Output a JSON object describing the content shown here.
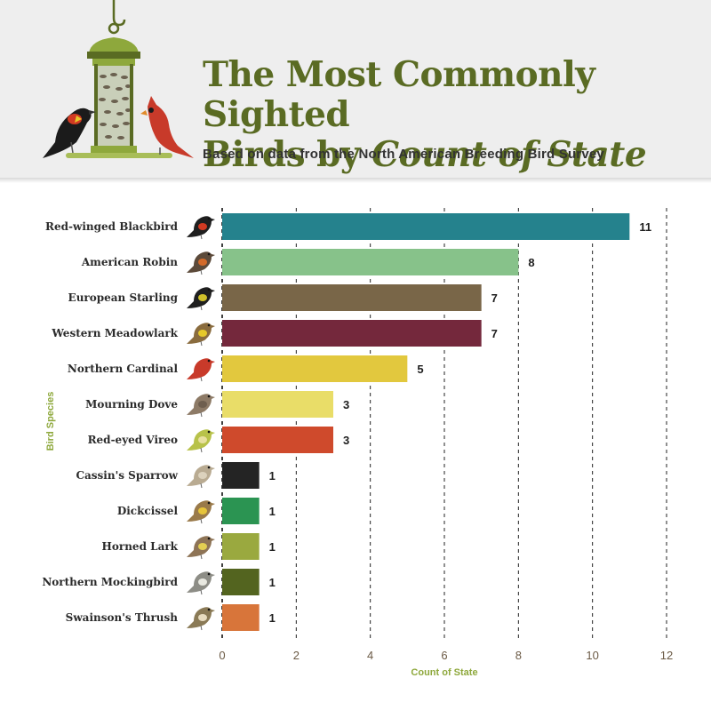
{
  "header": {
    "title_line1": "The Most Commonly Sighted",
    "title_line2_plain": "Birds by ",
    "title_line2_italic": "Count of State",
    "subtitle": "Based on data from the North American Breeding Bird Survey"
  },
  "colors": {
    "title": "#5a6b23",
    "header_bg": "#eeeeee",
    "axis_title": "#8ea83c",
    "tick_label": "#6b5a45"
  },
  "chart_data": {
    "type": "bar",
    "orientation": "horizontal",
    "title": "The Most Commonly Sighted Birds by Count of State",
    "subtitle": "Based on data from the North American Breeding Bird Survey",
    "xlabel": "Count of State",
    "ylabel": "Bird Species",
    "xlim": [
      0,
      12
    ],
    "xticks": [
      0,
      2,
      4,
      6,
      8,
      10,
      12
    ],
    "grid": "vertical dashed",
    "categories": [
      "Red-winged Blackbird",
      "American Robin",
      "European Starling",
      "Western Meadowlark",
      "Northern Cardinal",
      "Mourning Dove",
      "Red-eyed Vireo",
      "Cassin's Sparrow",
      "Dickcissel",
      "Horned Lark",
      "Northern Mockingbird",
      "Swainson's Thrush"
    ],
    "values": [
      11,
      8,
      7,
      7,
      5,
      3,
      3,
      1,
      1,
      1,
      1,
      1
    ],
    "bar_colors": [
      "#25828d",
      "#87c28a",
      "#796648",
      "#74283c",
      "#e2c83e",
      "#e9dd68",
      "#cf4a2c",
      "#242424",
      "#2b9452",
      "#9aa93f",
      "#53641f",
      "#d8753a"
    ],
    "bird_icons": [
      "red-winged-blackbird-icon",
      "american-robin-icon",
      "european-starling-icon",
      "western-meadowlark-icon",
      "northern-cardinal-icon",
      "mourning-dove-icon",
      "red-eyed-vireo-icon",
      "cassins-sparrow-icon",
      "dickcissel-icon",
      "horned-lark-icon",
      "northern-mockingbird-icon",
      "swainsons-thrush-icon"
    ],
    "icon_body_colors": [
      "#1f1f1f",
      "#5c4a3a",
      "#1f1f1f",
      "#8a6c3e",
      "#c83a2a",
      "#8d7a66",
      "#b8c24a",
      "#b9ab92",
      "#9a7a4a",
      "#8e7456",
      "#8d8d86",
      "#8a7a56"
    ],
    "icon_accent_colors": [
      "#d23a22",
      "#d36a2a",
      "#cfc02a",
      "#e6c92a",
      "#c83a2a",
      "#6e5e4e",
      "#e8e0a0",
      "#dcd2bd",
      "#e6c43a",
      "#e3cf52",
      "#e8e8e0",
      "#e8dcc0"
    ]
  }
}
